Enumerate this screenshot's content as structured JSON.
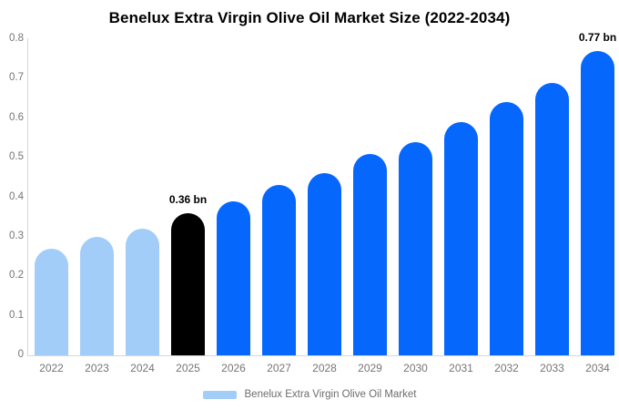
{
  "title": "Benelux Extra Virgin Olive Oil Market Size (2022-2034)",
  "colors": {
    "past_bar": "#a3cdf9",
    "current_bar": "#000000",
    "forecast_bar": "#0667fd",
    "axis_text": "#757575",
    "axis_line": "#d6d6d6",
    "value_label_text": "#000000",
    "legend_text": "#6d6d6d",
    "background": "#ffffff"
  },
  "chart_data": {
    "type": "bar",
    "title": "Benelux Extra Virgin Olive Oil Market Size (2022-2034)",
    "categories": [
      "2022",
      "2023",
      "2024",
      "2025",
      "2026",
      "2027",
      "2028",
      "2029",
      "2030",
      "2031",
      "2032",
      "2033",
      "2034"
    ],
    "values": [
      0.27,
      0.3,
      0.32,
      0.36,
      0.39,
      0.43,
      0.46,
      0.51,
      0.54,
      0.59,
      0.64,
      0.69,
      0.77
    ],
    "unit": "bn",
    "bar_styles": [
      "past",
      "past",
      "past",
      "current",
      "forecast",
      "forecast",
      "forecast",
      "forecast",
      "forecast",
      "forecast",
      "forecast",
      "forecast",
      "forecast"
    ],
    "value_labels": [
      "",
      "",
      "",
      "0.36 bn",
      "",
      "",
      "",
      "",
      "",
      "",
      "",
      "",
      "0.77 bn"
    ],
    "xlabel": "",
    "ylabel": "",
    "ylim": [
      0,
      0.8
    ],
    "yticks": [
      0,
      0.1,
      0.2,
      0.3,
      0.4,
      0.5,
      0.6,
      0.7,
      0.8
    ],
    "ytick_labels": [
      "0",
      "0.1",
      "0.2",
      "0.3",
      "0.4",
      "0.5",
      "0.6",
      "0.7",
      "0.8"
    ],
    "grid": false,
    "legend": {
      "position": "bottom",
      "items": [
        {
          "label": "Benelux Extra Virgin Olive Oil Market",
          "swatch_style": "past"
        }
      ]
    }
  }
}
